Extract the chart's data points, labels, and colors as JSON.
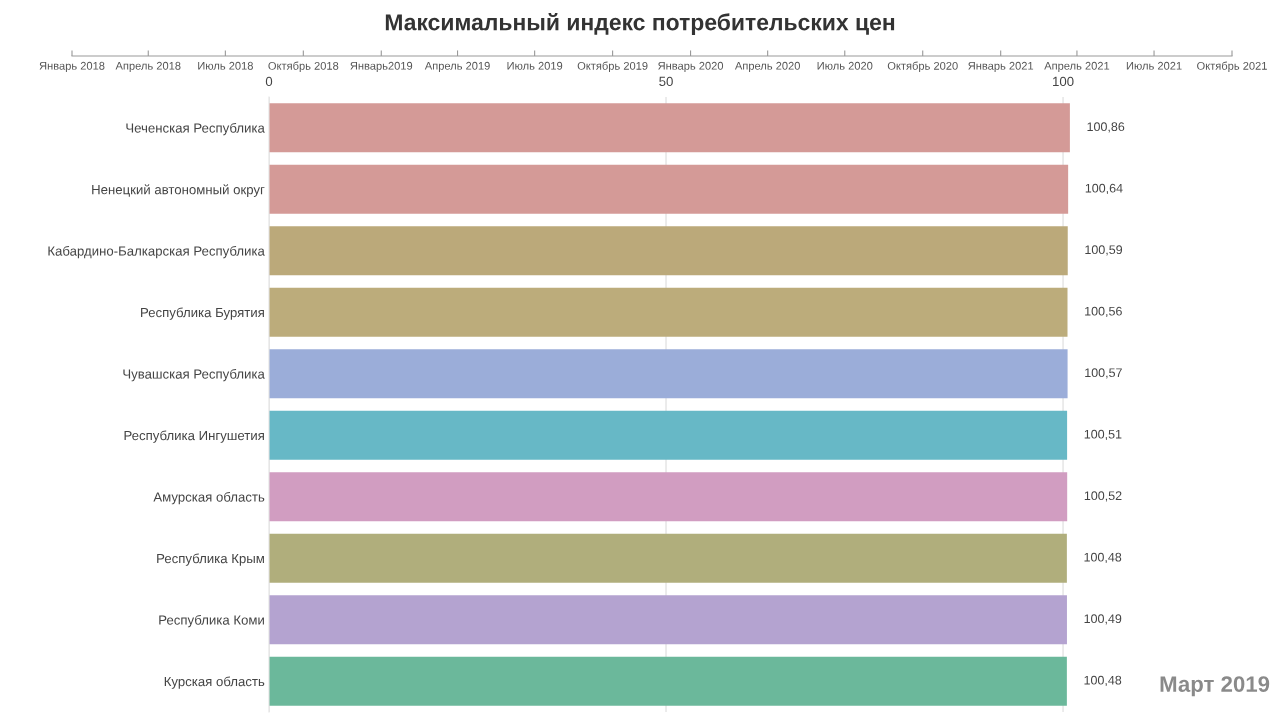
{
  "chart_data": {
    "type": "bar",
    "orientation": "horizontal",
    "title": "Максимальный индекс потребительских цен",
    "categories": [
      "Чеченская Республика",
      "Ненецкий автономный округ",
      "Кабардино-Балкарская Республика",
      "Республика Бурятия",
      "Чувашская Республика",
      "Республика Ингушетия",
      "Амурская область",
      "Республика Крым",
      "Республика Коми",
      "Курская область"
    ],
    "values": [
      100.86,
      100.64,
      100.59,
      100.56,
      100.57,
      100.51,
      100.52,
      100.48,
      100.49,
      100.48
    ],
    "colors": [
      "#d49a97",
      "#d49a97",
      "#bba97a",
      "#bcac7b",
      "#9badd9",
      "#67b8c6",
      "#d19dc1",
      "#b0ae7c",
      "#b4a3d0",
      "#6bb89b"
    ],
    "value_labels": [
      "100,86",
      "100,64",
      "100,59",
      "100,56",
      "100,57",
      "100,51",
      "100,52",
      "100,48",
      "100,49",
      "100,48"
    ],
    "xlim": [
      0,
      101
    ],
    "xticks": [
      0,
      50,
      100
    ],
    "x2lim": [
      "2018-01",
      "2021-10"
    ],
    "x2ticks": [
      {
        "value": "2018-01",
        "label": "Январь 2018"
      },
      {
        "value": "2018-04",
        "label": "Апрель 2018"
      },
      {
        "value": "2018-07",
        "label": "Июль 2018"
      },
      {
        "value": "2018-10",
        "label": "Октябрь 2018"
      },
      {
        "value": "2019-01",
        "label": "Январь2019"
      },
      {
        "value": "2019-04",
        "label": "Апрель 2019"
      },
      {
        "value": "2019-07",
        "label": "Июль 2019"
      },
      {
        "value": "2019-10",
        "label": "Октябрь 2019"
      },
      {
        "value": "2020-01",
        "label": "Январь 2020"
      },
      {
        "value": "2020-04",
        "label": "Апрель 2020"
      },
      {
        "value": "2020-07",
        "label": "Июль 2020"
      },
      {
        "value": "2020-10",
        "label": "Октябрь 2020"
      },
      {
        "value": "2021-01",
        "label": "Январь 2021"
      },
      {
        "value": "2021-04",
        "label": "Апрель 2021"
      },
      {
        "value": "2021-07",
        "label": "Июль 2021"
      },
      {
        "value": "2021-10",
        "label": "Октябрь 2021"
      }
    ],
    "grid": "x",
    "annotations": [
      "Март 2019"
    ]
  }
}
